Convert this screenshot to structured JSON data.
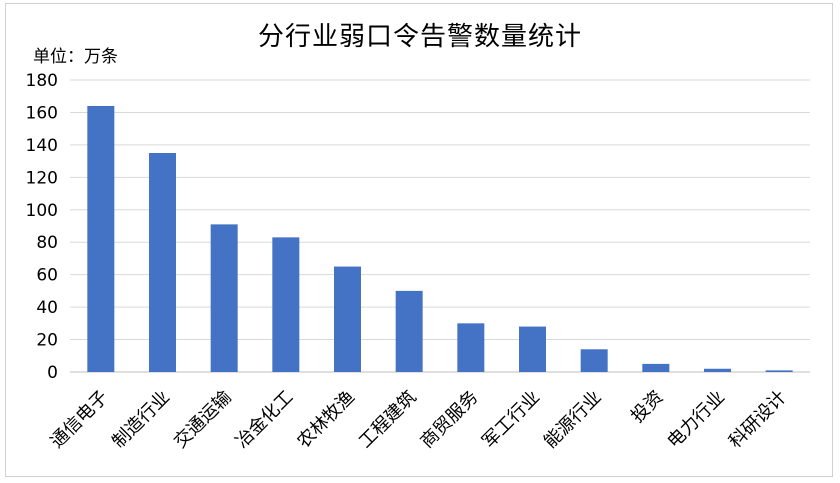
{
  "chart_data": {
    "type": "bar",
    "title": "分行业弱口令告警数量统计",
    "unit_label": "单位：万条",
    "categories": [
      "通信电子",
      "制造行业",
      "交通运输",
      "冶金化工",
      "农林牧渔",
      "工程建筑",
      "商贸服务",
      "军工行业",
      "能源行业",
      "投资",
      "电力行业",
      "科研设计"
    ],
    "values": [
      164,
      135,
      91,
      83,
      65,
      50,
      30,
      28,
      14,
      5,
      2,
      1
    ],
    "ylim": [
      0,
      180
    ],
    "yticks": [
      0,
      20,
      40,
      60,
      80,
      100,
      120,
      140,
      160,
      180
    ],
    "grid": true,
    "legend": "none",
    "bar_color": "#4472C4"
  }
}
